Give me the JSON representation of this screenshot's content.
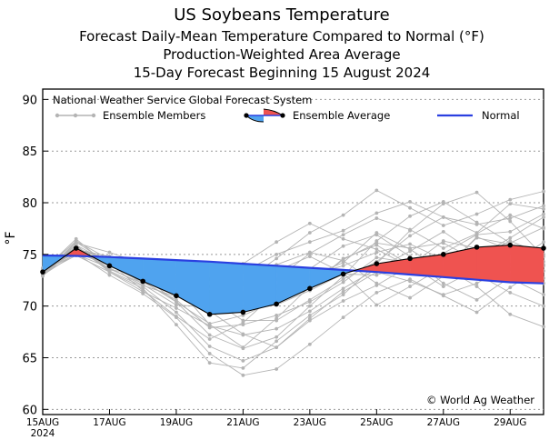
{
  "chart_data": {
    "type": "line",
    "title": "US Soybeans Temperature",
    "subtitle_lines": [
      "Forecast Daily-Mean Temperature Compared to Normal (°F)",
      "Production-Weighted Area Average",
      "15-Day Forecast Beginning 15 August 2024"
    ],
    "system_label": "National Weather Service Global Forecast System",
    "ylabel": "°F",
    "ylim": [
      59.5,
      91
    ],
    "yticks": [
      60,
      65,
      70,
      75,
      80,
      85,
      90
    ],
    "xlim": [
      0,
      15
    ],
    "xticks": [
      {
        "x": 0,
        "label": "15AUG",
        "sub": "2024"
      },
      {
        "x": 2,
        "label": "17AUG"
      },
      {
        "x": 4,
        "label": "19AUG"
      },
      {
        "x": 6,
        "label": "21AUG"
      },
      {
        "x": 8,
        "label": "23AUG"
      },
      {
        "x": 10,
        "label": "25AUG"
      },
      {
        "x": 12,
        "label": "27AUG"
      },
      {
        "x": 14,
        "label": "29AUG"
      }
    ],
    "legend": {
      "members": "Ensemble Members",
      "average": "Ensemble Average",
      "normal": "Normal"
    },
    "credit": "© World Ag Weather",
    "colors": {
      "members": "#b4b4b4",
      "above": "#ef5350",
      "below": "#4fa3ef",
      "normal": "#2a3fe0",
      "average": "#000000",
      "grid": "#999999"
    },
    "x": [
      0,
      1,
      2,
      3,
      4,
      5,
      6,
      7,
      8,
      9,
      10,
      11,
      12,
      13,
      14,
      15
    ],
    "normal": [
      74.9,
      74.85,
      74.75,
      74.6,
      74.45,
      74.3,
      74.1,
      73.9,
      73.7,
      73.5,
      73.3,
      73.05,
      72.8,
      72.55,
      72.3,
      72.2
    ],
    "ensemble_average": [
      73.3,
      75.6,
      73.9,
      72.4,
      71.0,
      69.2,
      69.4,
      70.2,
      71.7,
      73.1,
      74.1,
      74.6,
      75.0,
      75.7,
      75.9,
      75.6
    ],
    "ensemble_members": [
      [
        73.3,
        75.5,
        74.8,
        73.0,
        72.1,
        71.0,
        72.3,
        74.6,
        77.1,
        78.8,
        81.2,
        79.5,
        77.8,
        78.9,
        80.3,
        81.1
      ],
      [
        73.1,
        76.1,
        75.2,
        74.1,
        73.6,
        72.6,
        73.3,
        75.0,
        76.2,
        77.3,
        79.0,
        80.1,
        78.6,
        77.1,
        79.9,
        79.4
      ],
      [
        73.6,
        75.2,
        73.9,
        72.3,
        70.6,
        67.9,
        68.2,
        69.1,
        70.4,
        72.3,
        74.7,
        74.2,
        73.5,
        76.6,
        76.0,
        73.4
      ],
      [
        72.9,
        75.7,
        73.4,
        71.9,
        69.4,
        66.1,
        64.7,
        66.0,
        68.6,
        70.5,
        72.0,
        73.9,
        76.3,
        75.6,
        73.6,
        72.7
      ],
      [
        73.4,
        76.3,
        74.5,
        73.5,
        72.8,
        72.6,
        70.9,
        71.4,
        73.0,
        73.9,
        75.2,
        76.0,
        74.5,
        73.1,
        71.3,
        70.0
      ],
      [
        73.0,
        75.1,
        73.0,
        71.2,
        68.9,
        65.4,
        63.3,
        63.9,
        66.3,
        68.9,
        71.3,
        72.6,
        71.0,
        69.4,
        71.8,
        74.0
      ],
      [
        73.5,
        75.9,
        74.2,
        72.8,
        71.5,
        69.6,
        70.7,
        72.6,
        75.1,
        76.9,
        78.5,
        77.4,
        75.6,
        77.0,
        78.8,
        77.5
      ],
      [
        73.2,
        74.9,
        73.3,
        71.4,
        69.8,
        68.1,
        67.2,
        67.8,
        69.5,
        71.7,
        73.6,
        75.3,
        77.2,
        75.0,
        72.7,
        71.1
      ],
      [
        73.7,
        75.6,
        74.4,
        72.1,
        70.1,
        69.9,
        72.1,
        74.0,
        75.2,
        74.4,
        72.2,
        70.8,
        72.9,
        74.7,
        76.6,
        78.6
      ],
      [
        73.0,
        75.8,
        73.6,
        72.2,
        71.9,
        68.2,
        66.0,
        68.8,
        71.9,
        74.6,
        75.9,
        74.0,
        71.9,
        73.6,
        75.1,
        73.9
      ],
      [
        73.4,
        76.5,
        73.8,
        72.9,
        70.4,
        67.2,
        65.9,
        67.0,
        70.0,
        72.9,
        76.3,
        78.7,
        80.1,
        78.1,
        76.1,
        77.6
      ],
      [
        73.2,
        75.3,
        74.0,
        72.5,
        71.0,
        70.3,
        69.6,
        70.1,
        71.5,
        73.1,
        73.0,
        74.1,
        74.7,
        74.7,
        76.3,
        75.0
      ],
      [
        73.3,
        75.4,
        74.2,
        71.5,
        69.0,
        66.8,
        68.4,
        71.3,
        72.9,
        74.2,
        77.1,
        75.5,
        73.4,
        76.7,
        75.4,
        74.3
      ],
      [
        73.6,
        75.7,
        73.5,
        73.1,
        73.3,
        71.9,
        71.3,
        73.4,
        74.8,
        73.2,
        70.1,
        71.9,
        73.8,
        71.9,
        69.2,
        68.0
      ],
      [
        73.1,
        76.2,
        74.1,
        72.6,
        72.3,
        70.7,
        68.6,
        68.6,
        70.6,
        72.6,
        74.3,
        76.8,
        78.6,
        77.9,
        78.5,
        79.7
      ],
      [
        73.4,
        75.0,
        73.7,
        72.0,
        70.9,
        70.1,
        70.6,
        71.9,
        73.6,
        75.8,
        76.9,
        74.8,
        72.2,
        70.6,
        72.8,
        75.5
      ],
      [
        73.5,
        75.5,
        74.6,
        73.3,
        71.3,
        69.5,
        67.3,
        66.0,
        68.8,
        71.4,
        73.3,
        72.4,
        71.1,
        72.2,
        74.0,
        76.2
      ],
      [
        73.3,
        75.9,
        73.3,
        71.7,
        68.2,
        64.5,
        64.0,
        66.6,
        69.1,
        71.1,
        74.1,
        77.3,
        79.9,
        81.0,
        78.2,
        74.8
      ],
      [
        73.2,
        75.6,
        74.3,
        73.7,
        72.5,
        71.4,
        74.1,
        76.2,
        78.0,
        76.5,
        75.5,
        73.8,
        75.1,
        76.9,
        77.2,
        78.9
      ],
      [
        73.4,
        75.2,
        74.0,
        72.4,
        70.4,
        68.3,
        69.1,
        70.5,
        72.0,
        74.5,
        76.1,
        75.6,
        76.1,
        74.4,
        73.0,
        72.2
      ]
    ]
  }
}
